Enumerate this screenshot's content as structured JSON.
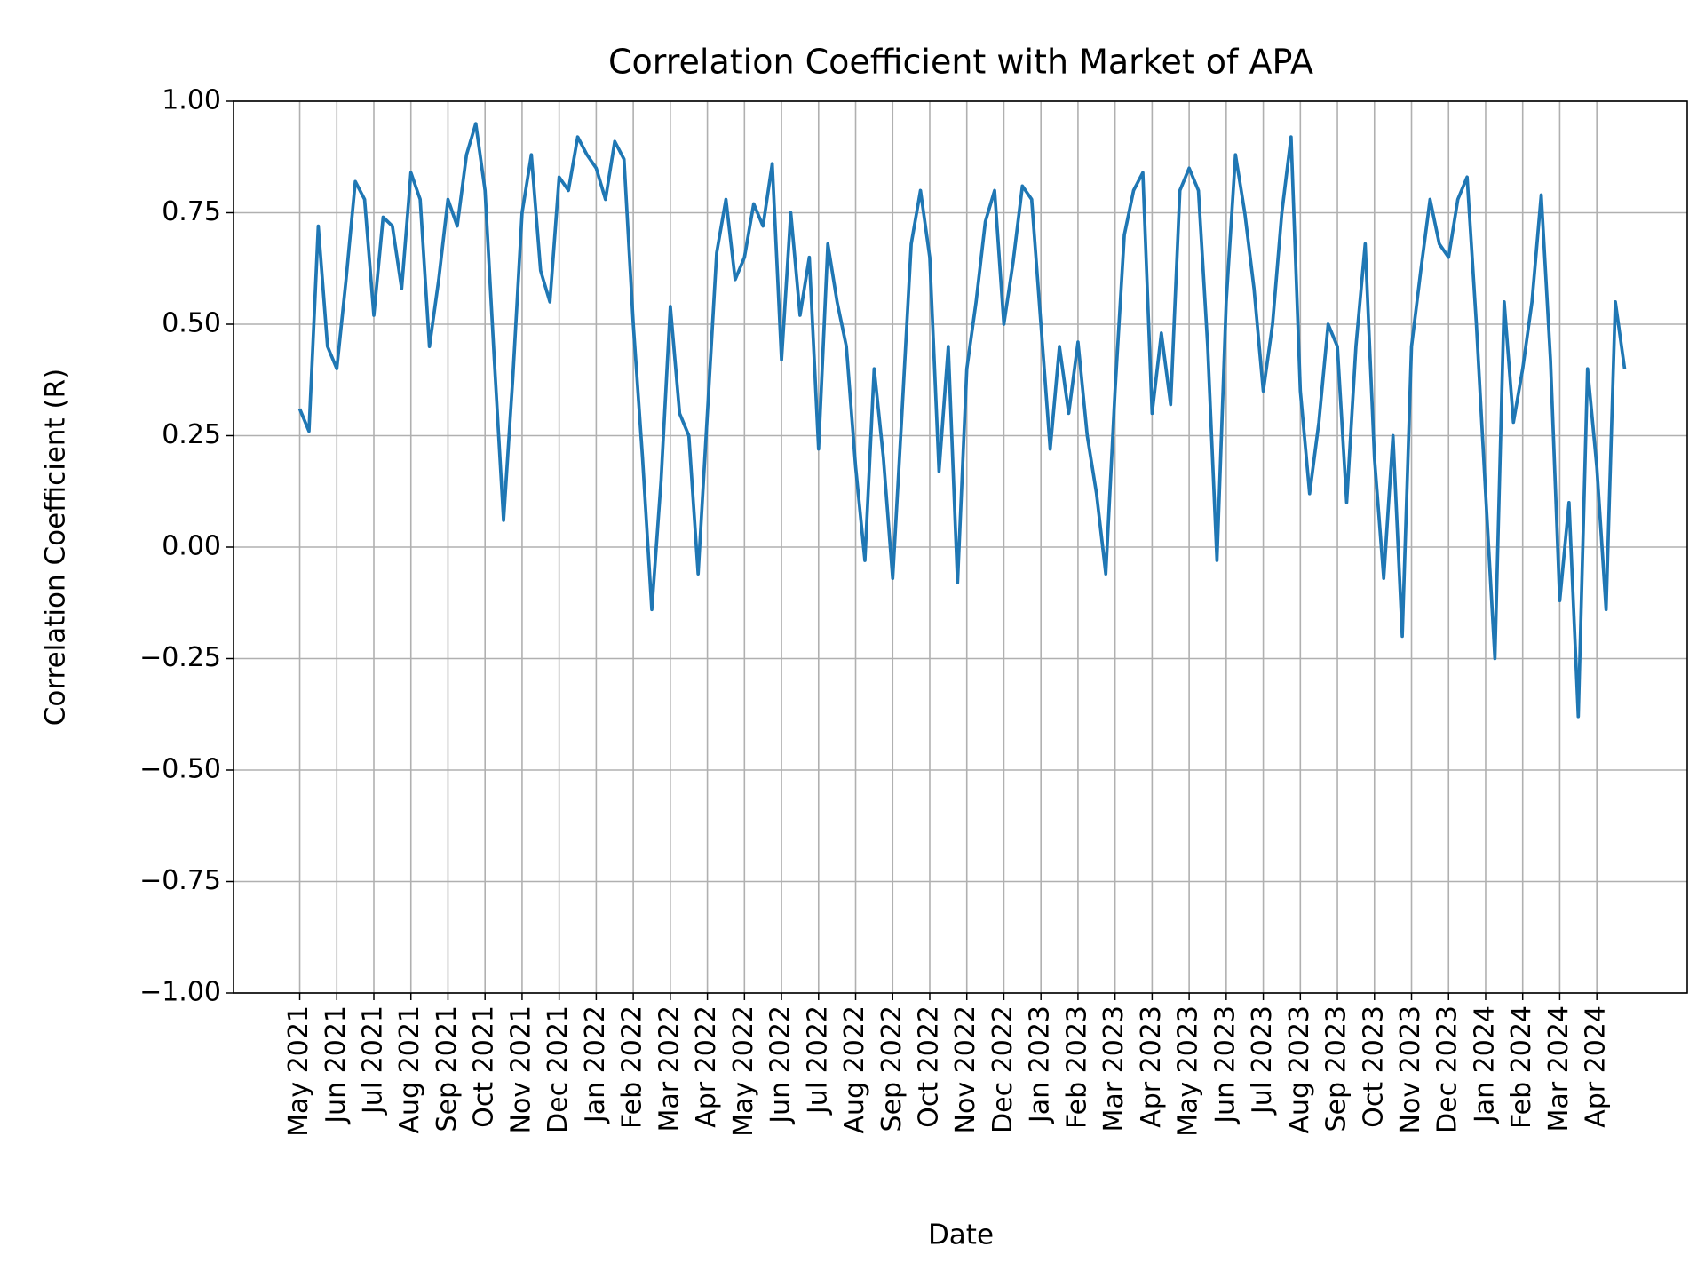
{
  "chart_data": {
    "type": "line",
    "title": "Correlation Coefficient with Market of APA",
    "x_label": "Date",
    "y_label": "Correlation Coefficient (R)",
    "grid": true,
    "xlim": [
      -1.786,
      37.44
    ],
    "ylim": [
      -1.0,
      1.0
    ],
    "yticks": [
      {
        "value": -1.0,
        "label": "−1.00"
      },
      {
        "value": -0.75,
        "label": "−0.75"
      },
      {
        "value": -0.5,
        "label": "−0.50"
      },
      {
        "value": -0.25,
        "label": "−0.25"
      },
      {
        "value": 0,
        "label": "0.00"
      },
      {
        "value": 0.25,
        "label": "0.25"
      },
      {
        "value": 0.5,
        "label": "0.50"
      },
      {
        "value": 0.75,
        "label": "0.75"
      },
      {
        "value": 1.0,
        "label": "1.00"
      }
    ],
    "xticks": [
      {
        "value": 0,
        "label": "May 2021"
      },
      {
        "value": 1,
        "label": "Jun 2021"
      },
      {
        "value": 2,
        "label": "Jul 2021"
      },
      {
        "value": 3,
        "label": "Aug 2021"
      },
      {
        "value": 4,
        "label": "Sep 2021"
      },
      {
        "value": 5,
        "label": "Oct 2021"
      },
      {
        "value": 6,
        "label": "Nov 2021"
      },
      {
        "value": 7,
        "label": "Dec 2021"
      },
      {
        "value": 8,
        "label": "Jan 2022"
      },
      {
        "value": 9,
        "label": "Feb 2022"
      },
      {
        "value": 10,
        "label": "Mar 2022"
      },
      {
        "value": 11,
        "label": "Apr 2022"
      },
      {
        "value": 12,
        "label": "May 2022"
      },
      {
        "value": 13,
        "label": "Jun 2022"
      },
      {
        "value": 14,
        "label": "Jul 2022"
      },
      {
        "value": 15,
        "label": "Aug 2022"
      },
      {
        "value": 16,
        "label": "Sep 2022"
      },
      {
        "value": 17,
        "label": "Oct 2022"
      },
      {
        "value": 18,
        "label": "Nov 2022"
      },
      {
        "value": 19,
        "label": "Dec 2022"
      },
      {
        "value": 20,
        "label": "Jan 2023"
      },
      {
        "value": 21,
        "label": "Feb 2023"
      },
      {
        "value": 22,
        "label": "Mar 2023"
      },
      {
        "value": 23,
        "label": "Apr 2023"
      },
      {
        "value": 24,
        "label": "May 2023"
      },
      {
        "value": 25,
        "label": "Jun 2023"
      },
      {
        "value": 26,
        "label": "Jul 2023"
      },
      {
        "value": 27,
        "label": "Aug 2023"
      },
      {
        "value": 28,
        "label": "Sep 2023"
      },
      {
        "value": 29,
        "label": "Oct 2023"
      },
      {
        "value": 30,
        "label": "Nov 2023"
      },
      {
        "value": 31,
        "label": "Dec 2023"
      },
      {
        "value": 32,
        "label": "Jan 2024"
      },
      {
        "value": 33,
        "label": "Feb 2024"
      },
      {
        "value": 34,
        "label": "Mar 2024"
      },
      {
        "value": 35,
        "label": "Apr 2024"
      }
    ],
    "series": [
      {
        "color": "#1f77b4",
        "x": [
          0,
          0.25,
          0.5,
          0.75,
          1,
          1.25,
          1.5,
          1.75,
          2,
          2.25,
          2.5,
          2.75,
          3,
          3.25,
          3.5,
          3.75,
          4,
          4.25,
          4.5,
          4.75,
          5,
          5.25,
          5.5,
          5.75,
          6,
          6.25,
          6.5,
          6.75,
          7,
          7.25,
          7.5,
          7.75,
          8,
          8.25,
          8.5,
          8.75,
          9,
          9.25,
          9.5,
          9.75,
          10,
          10.25,
          10.5,
          10.75,
          11,
          11.25,
          11.5,
          11.75,
          12,
          12.25,
          12.5,
          12.75,
          13,
          13.25,
          13.5,
          13.75,
          14,
          14.25,
          14.5,
          14.75,
          15,
          15.25,
          15.5,
          15.75,
          16,
          16.25,
          16.5,
          16.75,
          17,
          17.25,
          17.5,
          17.75,
          18,
          18.25,
          18.5,
          18.75,
          19,
          19.25,
          19.5,
          19.75,
          20,
          20.25,
          20.5,
          20.75,
          21,
          21.25,
          21.5,
          21.75,
          22,
          22.25,
          22.5,
          22.75,
          23,
          23.25,
          23.5,
          23.75,
          24,
          24.25,
          24.5,
          24.75,
          25,
          25.25,
          25.5,
          25.75,
          26,
          26.25,
          26.5,
          26.75,
          27,
          27.25,
          27.5,
          27.75,
          28,
          28.25,
          28.5,
          28.75,
          29,
          29.25,
          29.5,
          29.75,
          30,
          30.25,
          30.5,
          30.75,
          31,
          31.25,
          31.5,
          31.75,
          32,
          32.25,
          32.5,
          32.75,
          33,
          33.25,
          33.5,
          33.75,
          34,
          34.25,
          34.5,
          34.75,
          35,
          35.25,
          35.5,
          35.75
        ],
        "values": [
          0.31,
          0.26,
          0.72,
          0.45,
          0.4,
          0.6,
          0.82,
          0.78,
          0.52,
          0.74,
          0.72,
          0.58,
          0.84,
          0.78,
          0.45,
          0.6,
          0.78,
          0.72,
          0.88,
          0.95,
          0.8,
          0.42,
          0.06,
          0.38,
          0.75,
          0.88,
          0.62,
          0.55,
          0.83,
          0.8,
          0.92,
          0.88,
          0.85,
          0.78,
          0.91,
          0.87,
          0.5,
          0.2,
          -0.14,
          0.15,
          0.54,
          0.3,
          0.25,
          -0.06,
          0.3,
          0.66,
          0.78,
          0.6,
          0.65,
          0.77,
          0.72,
          0.86,
          0.42,
          0.75,
          0.52,
          0.65,
          0.22,
          0.68,
          0.55,
          0.45,
          0.18,
          -0.03,
          0.4,
          0.2,
          -0.07,
          0.3,
          0.68,
          0.8,
          0.65,
          0.17,
          0.45,
          -0.08,
          0.4,
          0.55,
          0.73,
          0.8,
          0.5,
          0.64,
          0.81,
          0.78,
          0.5,
          0.22,
          0.45,
          0.3,
          0.46,
          0.25,
          0.12,
          -0.06,
          0.35,
          0.7,
          0.8,
          0.84,
          0.3,
          0.48,
          0.32,
          0.8,
          0.85,
          0.8,
          0.45,
          -0.03,
          0.55,
          0.88,
          0.75,
          0.58,
          0.35,
          0.5,
          0.75,
          0.92,
          0.35,
          0.12,
          0.28,
          0.5,
          0.45,
          0.1,
          0.45,
          0.68,
          0.2,
          -0.07,
          0.25,
          -0.2,
          0.45,
          0.62,
          0.78,
          0.68,
          0.65,
          0.78,
          0.83,
          0.5,
          0.12,
          -0.25,
          0.55,
          0.28,
          0.4,
          0.55,
          0.79,
          0.42,
          -0.12,
          0.1,
          -0.38,
          0.4,
          0.18,
          -0.14,
          0.55,
          0.4
        ]
      }
    ]
  }
}
